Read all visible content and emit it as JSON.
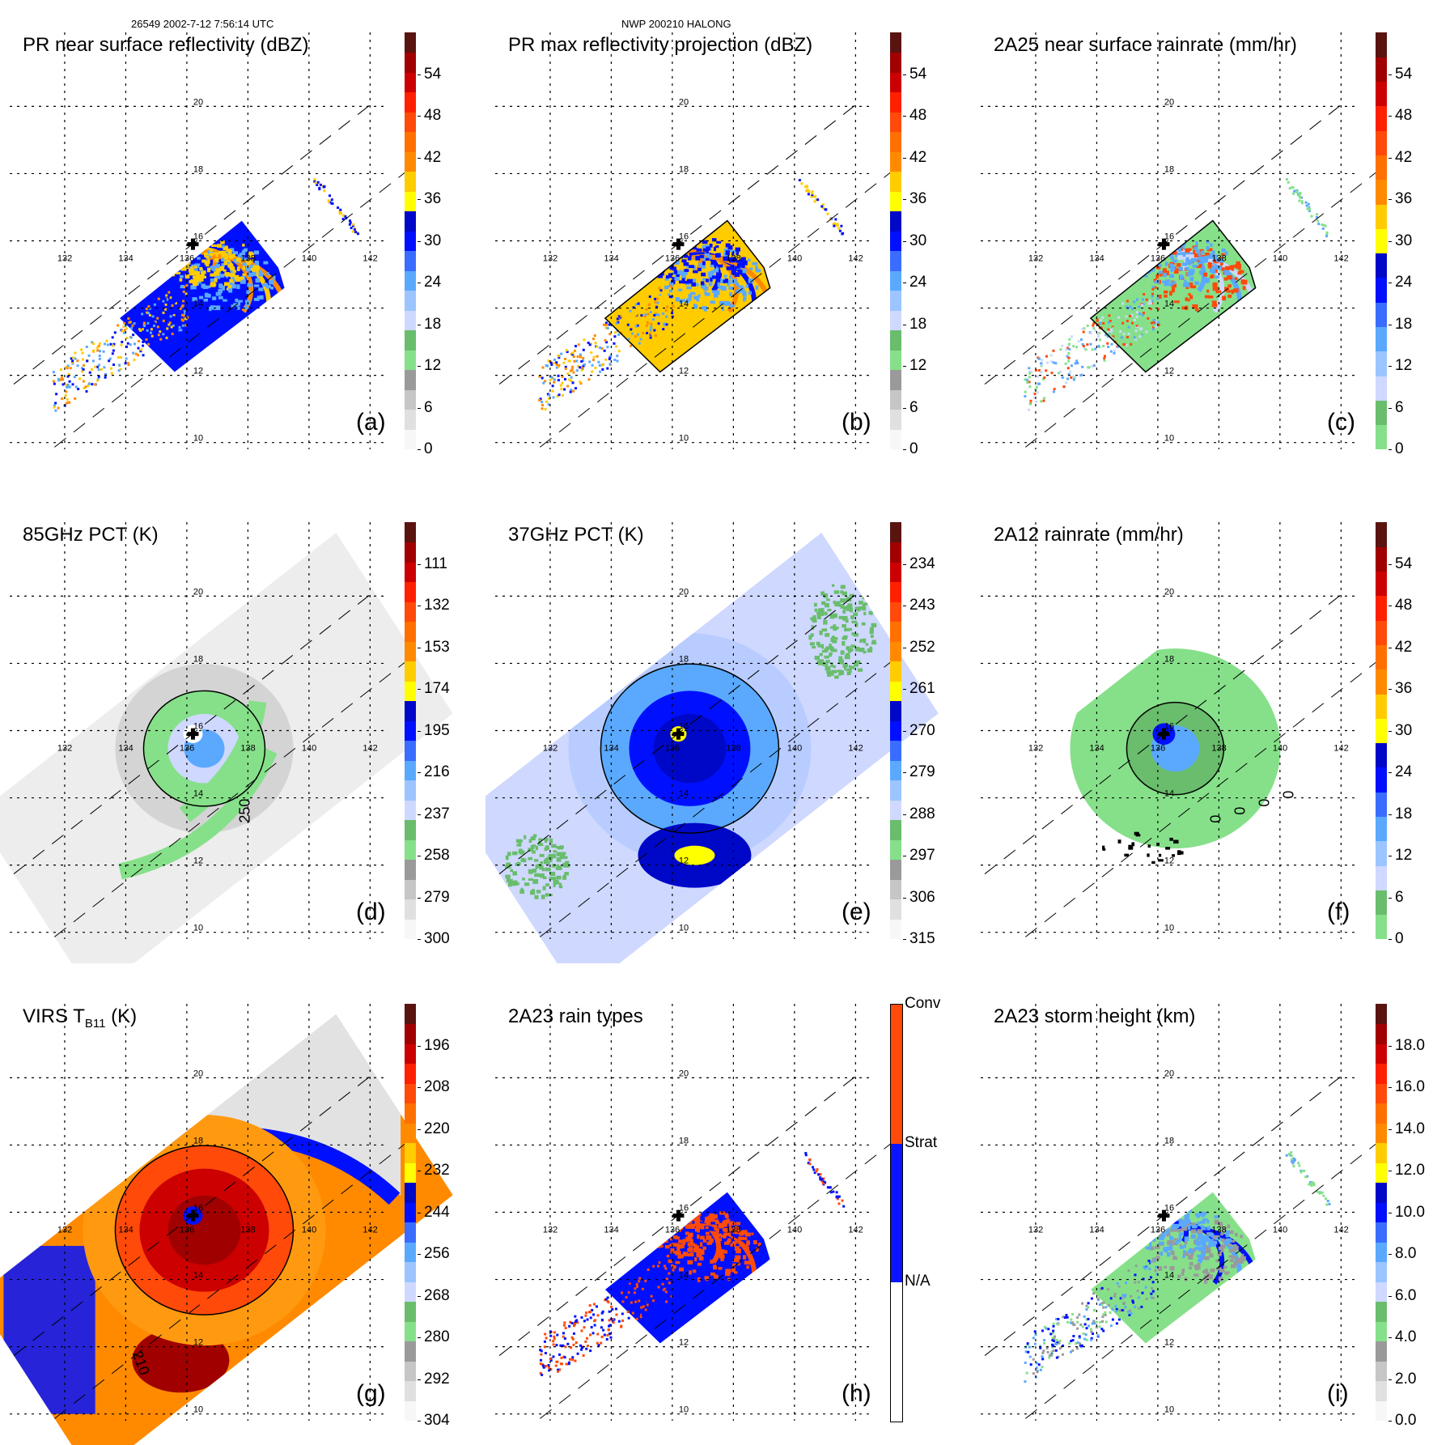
{
  "header": {
    "left": "26549 2002-7-12 7:56:14 UTC",
    "center": "NWP 200210 HALONG"
  },
  "map": {
    "lon_ticks": [
      "132",
      "134",
      "136",
      "138",
      "140",
      "142"
    ],
    "lat_ticks": [
      "20",
      "18",
      "16",
      "14",
      "12",
      "10"
    ],
    "lon_range": [
      130.2,
      142.6
    ],
    "lat_range": [
      9.8,
      22.2
    ],
    "storm_center": {
      "lon": 136.2,
      "lat": 15.9,
      "marker": "plus-icon"
    }
  },
  "chart_data": [
    {
      "id": "a",
      "type": "heatmap",
      "title": "PR near surface reflectivity (dBZ)",
      "panel_label": "(a)",
      "colorbar": {
        "ticks": [
          "0",
          "6",
          "12",
          "18",
          "24",
          "30",
          "36",
          "42",
          "48",
          "54"
        ],
        "range": [
          0,
          60
        ],
        "kind": "continuous"
      },
      "field": "pr_swath",
      "contour_labels": []
    },
    {
      "id": "b",
      "type": "heatmap",
      "title": "PR max reflectivity projection (dBZ)",
      "panel_label": "(b)",
      "colorbar": {
        "ticks": [
          "0",
          "6",
          "12",
          "18",
          "24",
          "30",
          "36",
          "42",
          "48",
          "54"
        ],
        "range": [
          0,
          60
        ],
        "kind": "continuous"
      },
      "field": "pr_swath_contour",
      "contour_labels": []
    },
    {
      "id": "c",
      "type": "heatmap",
      "title": "2A25 near surface rainrate (mm/hr)",
      "panel_label": "(c)",
      "colorbar": {
        "ticks": [
          "0",
          "6",
          "12",
          "18",
          "24",
          "30",
          "36",
          "42",
          "48",
          "54"
        ],
        "range": [
          0,
          60
        ],
        "kind": "rain"
      },
      "field": "pr_rain",
      "contour_labels": []
    },
    {
      "id": "d",
      "type": "heatmap",
      "title": "85GHz PCT (K)",
      "panel_label": "(d)",
      "colorbar": {
        "ticks": [
          "300",
          "279",
          "258",
          "237",
          "216",
          "195",
          "174",
          "153",
          "132",
          "111"
        ],
        "range": [
          300,
          90
        ],
        "kind": "continuous"
      },
      "field": "tmi_85",
      "contour_labels": [
        "250"
      ]
    },
    {
      "id": "e",
      "type": "heatmap",
      "title": "37GHz PCT (K)",
      "panel_label": "(e)",
      "colorbar": {
        "ticks": [
          "315",
          "306",
          "297",
          "288",
          "279",
          "270",
          "261",
          "252",
          "243",
          "234"
        ],
        "range": [
          315,
          225
        ],
        "kind": "continuous"
      },
      "field": "tmi_37",
      "contour_labels": []
    },
    {
      "id": "f",
      "type": "heatmap",
      "title": "2A12 rainrate (mm/hr)",
      "panel_label": "(f)",
      "colorbar": {
        "ticks": [
          "0",
          "6",
          "12",
          "18",
          "24",
          "30",
          "36",
          "42",
          "48",
          "54"
        ],
        "range": [
          0,
          60
        ],
        "kind": "rain"
      },
      "field": "tmi_rain",
      "contour_labels": [
        "0",
        "0",
        "0",
        "0"
      ]
    },
    {
      "id": "g",
      "type": "heatmap",
      "title_main": "VIRS T",
      "title_sub": "B11",
      "title_tail": " (K)",
      "panel_label": "(g)",
      "colorbar": {
        "ticks": [
          "304",
          "292",
          "280",
          "268",
          "256",
          "244",
          "232",
          "220",
          "208",
          "196"
        ],
        "range": [
          304,
          184
        ],
        "kind": "continuous"
      },
      "field": "virs",
      "contour_labels": [
        "210"
      ]
    },
    {
      "id": "h",
      "type": "heatmap",
      "title": "2A23 rain types",
      "panel_label": "(h)",
      "colorbar": {
        "kind": "categorical",
        "categories": [
          {
            "label": "N/A",
            "color": "#ffffff"
          },
          {
            "label": "Strat",
            "color": "#0a14ff"
          },
          {
            "label": "Conv",
            "color": "#ff4a0a"
          }
        ],
        "top_label": "Conv"
      },
      "field": "raintype"
    },
    {
      "id": "i",
      "type": "heatmap",
      "title": "2A23 storm height (km)",
      "panel_label": "(i)",
      "colorbar": {
        "ticks": [
          "0.0",
          "2.0",
          "4.0",
          "6.0",
          "8.0",
          "10.0",
          "12.0",
          "14.0",
          "16.0",
          "18.0"
        ],
        "range": [
          0,
          20
        ],
        "kind": "continuous"
      },
      "field": "stormheight",
      "contour_labels": []
    }
  ],
  "palette": {
    "gray_light": "#f7f7f7",
    "gray_dark": "#9a9a9a",
    "green_light": "#86e08a",
    "green_dark": "#69bd6c",
    "blue_light": "#cfd8ff",
    "blue_mid": "#5aa9ff",
    "blue": "#0010ff",
    "blue_dark": "#0008c8",
    "yellow": "#ffff00",
    "gold": "#ffcc00",
    "orange": "#ff8a00",
    "redorange": "#ff4a0a",
    "red": "#ff2000",
    "crimson": "#cc0000",
    "maroon": "#a00000",
    "darkbrown": "#5a1410"
  }
}
